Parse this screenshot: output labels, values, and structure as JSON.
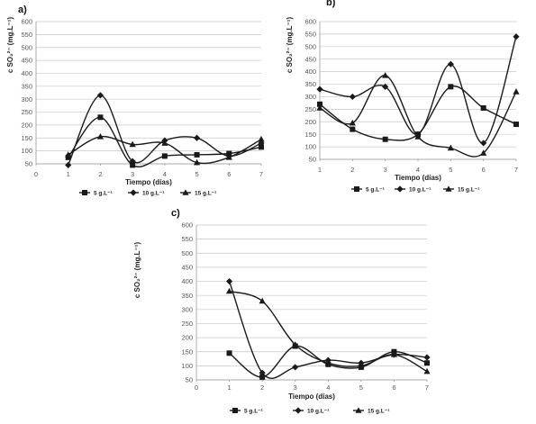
{
  "chart_data": [
    {
      "type": "line",
      "panel_label": "a)",
      "xlabel": "Tiempo (días)",
      "ylabel": "c SO₂²⁻ (mg.L⁻¹)",
      "x_ticks": [
        "0",
        "1",
        "2",
        "3",
        "4",
        "5",
        "6",
        "7"
      ],
      "y_ticks": [
        "50",
        "100",
        "150",
        "200",
        "250",
        "300",
        "350",
        "400",
        "450",
        "500",
        "550",
        "600"
      ],
      "xlim": [
        0,
        7
      ],
      "ylim": [
        50,
        600
      ],
      "grid": true,
      "legend_position": "bottom",
      "x": [
        1,
        2,
        3,
        4,
        5,
        6,
        7
      ],
      "series": [
        {
          "name": "5 g.L⁻¹",
          "marker": "square",
          "values": [
            75,
            230,
            45,
            80,
            85,
            90,
            115
          ]
        },
        {
          "name": "10 g.L⁻¹",
          "marker": "diamond",
          "values": [
            45,
            315,
            60,
            140,
            150,
            80,
            130
          ]
        },
        {
          "name": "15 g.L⁻¹",
          "marker": "triangle",
          "values": [
            85,
            155,
            125,
            130,
            55,
            75,
            145
          ]
        }
      ]
    },
    {
      "type": "line",
      "panel_label": "b)",
      "xlabel": "Tiempo (días)",
      "ylabel": "c SO₂²⁻ (mg.L⁻¹)",
      "x_ticks": [
        "1",
        "2",
        "3",
        "4",
        "5",
        "6",
        "7"
      ],
      "y_ticks": [
        "50",
        "100",
        "150",
        "200",
        "250",
        "300",
        "350",
        "400",
        "450",
        "500",
        "550",
        "600"
      ],
      "xlim": [
        1,
        7
      ],
      "ylim": [
        50,
        600
      ],
      "grid": true,
      "legend_position": "bottom",
      "x": [
        1,
        2,
        3,
        4,
        5,
        6,
        7
      ],
      "series": [
        {
          "name": "5 g.L⁻¹",
          "marker": "square",
          "values": [
            270,
            170,
            130,
            150,
            340,
            255,
            190
          ]
        },
        {
          "name": "10 g.L⁻¹",
          "marker": "diamond",
          "values": [
            330,
            300,
            340,
            150,
            430,
            115,
            540
          ]
        },
        {
          "name": "15 g.L⁻¹",
          "marker": "triangle",
          "values": [
            255,
            195,
            385,
            140,
            95,
            75,
            320
          ]
        }
      ]
    },
    {
      "type": "line",
      "panel_label": "c)",
      "xlabel": "Tiempo (días)",
      "ylabel": "c SO₂²⁻ (mg.L⁻¹)",
      "x_ticks": [
        "0",
        "1",
        "2",
        "3",
        "4",
        "5",
        "6",
        "7"
      ],
      "y_ticks": [
        "50",
        "100",
        "150",
        "200",
        "250",
        "300",
        "350",
        "400",
        "450",
        "500",
        "550",
        "600"
      ],
      "xlim": [
        0,
        7
      ],
      "ylim": [
        50,
        600
      ],
      "grid": true,
      "legend_position": "bottom",
      "x": [
        1,
        2,
        3,
        4,
        5,
        6,
        7
      ],
      "series": [
        {
          "name": "5 g.L⁻¹",
          "marker": "square",
          "values": [
            145,
            60,
            170,
            105,
            95,
            150,
            110
          ]
        },
        {
          "name": "10 g.L⁻¹",
          "marker": "diamond",
          "values": [
            400,
            75,
            95,
            120,
            110,
            140,
            130
          ]
        },
        {
          "name": "15 g.L⁻¹",
          "marker": "triangle",
          "values": [
            365,
            330,
            175,
            110,
            100,
            140,
            80
          ]
        }
      ]
    }
  ]
}
